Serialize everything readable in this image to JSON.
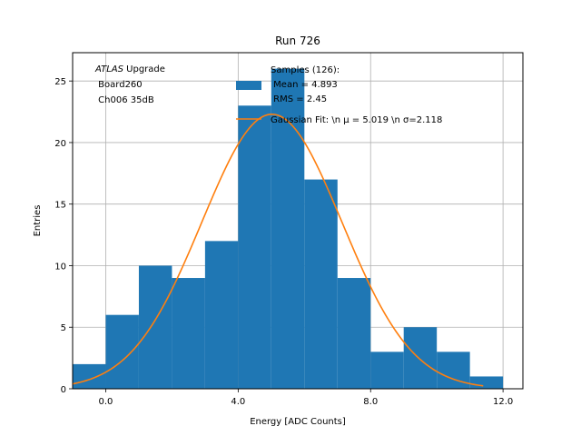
{
  "chart_data": {
    "type": "bar",
    "title": "Run 726",
    "xlabel": "Energy [ADC Counts]",
    "ylabel": "Entries",
    "xlim": [
      -1.0,
      12.6
    ],
    "ylim": [
      0,
      27.3
    ],
    "grid": true,
    "x_ticks": [
      0,
      4,
      8,
      12
    ],
    "x_tick_labels": [
      "0.0",
      "4.0",
      "8.0",
      "12.0"
    ],
    "y_ticks": [
      0,
      5,
      10,
      15,
      20,
      25
    ],
    "y_tick_labels": [
      "0",
      "5",
      "10",
      "15",
      "20",
      "25"
    ],
    "bin_edges": [
      -1,
      0,
      1,
      2,
      3,
      4,
      5,
      6,
      7,
      8,
      9,
      10,
      11,
      12
    ],
    "values": [
      2,
      6,
      10,
      9,
      12,
      23,
      26,
      17,
      9,
      3,
      5,
      3,
      1
    ],
    "bar_color": "#1f77b4",
    "fit": {
      "mu": 5.019,
      "sigma": 2.118,
      "amplitude": 22.3,
      "x_range": [
        -1.0,
        11.4
      ],
      "color": "#ff7f0e"
    },
    "annotation": {
      "lines": [
        {
          "italic": "ATLAS",
          "rest": " Upgrade"
        },
        {
          "italic": "",
          "rest": " Board260"
        },
        {
          "italic": "",
          "rest": " Ch006 35dB"
        }
      ]
    },
    "legend": {
      "position": "top-center",
      "entries": [
        {
          "kind": "patch",
          "label_lines": [
            "Samples (126):",
            " Mean = 4.893",
            " RMS = 2.45"
          ]
        },
        {
          "kind": "line",
          "label_lines": [
            "Gaussian Fit: \\n μ = 5.019 \\n σ=2.118"
          ]
        }
      ]
    }
  }
}
